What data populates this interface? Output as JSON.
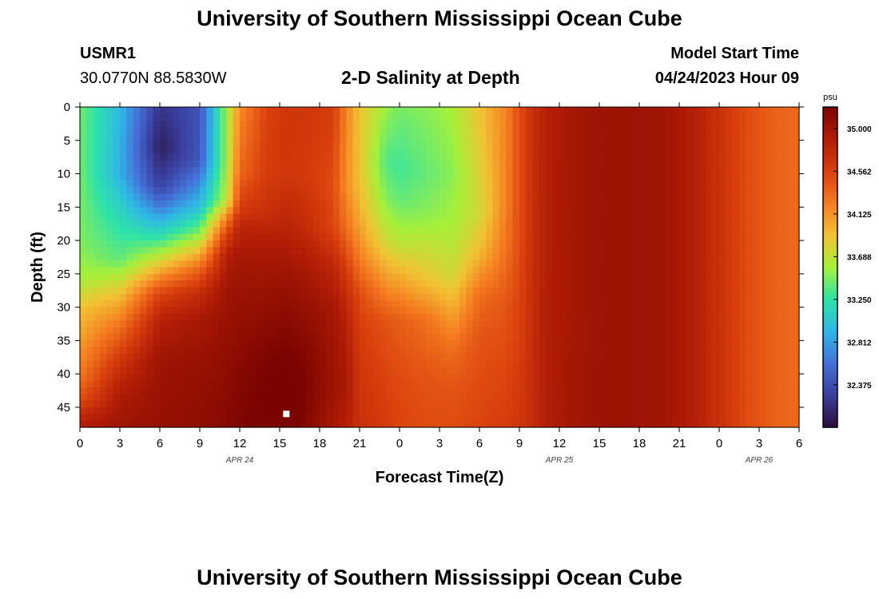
{
  "header": {
    "title": "University of Southern Mississippi Ocean Cube",
    "station_id": "USMR1",
    "location": "30.0770N  88.5830W",
    "chart_title": "2-D Salinity at Depth",
    "model_label": "Model Start Time",
    "model_time": "04/24/2023 Hour 09"
  },
  "footer": {
    "title": "University of Southern Mississippi Ocean Cube"
  },
  "chart_data": {
    "type": "heatmap",
    "title": "2-D Salinity at Depth",
    "xlabel": "Forecast Time(Z)",
    "ylabel": "Depth (ft)",
    "x_tick_labels": [
      "0",
      "3",
      "6",
      "9",
      "12",
      "15",
      "18",
      "21",
      "0",
      "3",
      "6",
      "9",
      "12",
      "15",
      "18",
      "21",
      "0",
      "3",
      "6"
    ],
    "x_date_labels": [
      {
        "label": "APR 24",
        "hour": 12
      },
      {
        "label": "APR 25",
        "hour": 36
      },
      {
        "label": "APR 26",
        "hour": 51
      }
    ],
    "xlim_hours": [
      0,
      54
    ],
    "y_tick_labels": [
      "0",
      "5",
      "10",
      "15",
      "20",
      "25",
      "30",
      "35",
      "40",
      "45"
    ],
    "ylim": [
      0,
      48
    ],
    "y_inverted": true,
    "colorbar": {
      "unit": "psu",
      "ticks": [
        "35.000",
        "34.562",
        "34.125",
        "33.688",
        "33.250",
        "32.812",
        "32.375"
      ],
      "range": [
        31.94,
        35.22
      ],
      "colormap": [
        "#2a0f3c",
        "#3a3d9c",
        "#4570d8",
        "#2fb7e6",
        "#2ee3a8",
        "#a6f03a",
        "#f2c234",
        "#f57b20",
        "#d9400d",
        "#b01c06",
        "#7a0400"
      ]
    },
    "grid": false,
    "marker": {
      "hour": 15.5,
      "depth": 46,
      "color": "#ffffff"
    },
    "salinity_profiles": [
      {
        "hour": 0,
        "values": [
          [
            0,
            33.44
          ],
          [
            10,
            33.44
          ],
          [
            20,
            33.47
          ],
          [
            26,
            33.6
          ],
          [
            30,
            33.9
          ],
          [
            36,
            34.1
          ],
          [
            41,
            34.3
          ],
          [
            44,
            34.5
          ],
          [
            46,
            34.75
          ],
          [
            48,
            34.9
          ]
        ]
      },
      {
        "hour": 3,
        "values": [
          [
            0,
            32.95
          ],
          [
            10,
            32.9
          ],
          [
            17,
            33.2
          ],
          [
            23,
            33.4
          ],
          [
            28,
            33.9
          ],
          [
            33,
            34.3
          ],
          [
            38,
            34.65
          ],
          [
            43,
            34.9
          ],
          [
            48,
            35.0
          ]
        ]
      },
      {
        "hour": 6,
        "values": [
          [
            0,
            32.2
          ],
          [
            6,
            32.05
          ],
          [
            12,
            32.3
          ],
          [
            17,
            32.9
          ],
          [
            21,
            33.45
          ],
          [
            25,
            34.1
          ],
          [
            28,
            34.55
          ],
          [
            32,
            34.85
          ],
          [
            38,
            35.0
          ],
          [
            48,
            35.05
          ]
        ]
      },
      {
        "hour": 9,
        "values": [
          [
            0,
            32.4
          ],
          [
            8,
            32.45
          ],
          [
            15,
            33.0
          ],
          [
            19,
            33.5
          ],
          [
            22,
            34.0
          ],
          [
            25,
            34.45
          ],
          [
            28,
            34.75
          ],
          [
            32,
            34.95
          ],
          [
            40,
            35.05
          ],
          [
            48,
            35.1
          ]
        ]
      },
      {
        "hour": 11,
        "values": [
          [
            0,
            33.55
          ],
          [
            8,
            33.55
          ],
          [
            14,
            33.65
          ],
          [
            17,
            34.25
          ],
          [
            19,
            34.55
          ],
          [
            22,
            34.85
          ],
          [
            28,
            35.0
          ],
          [
            40,
            35.1
          ],
          [
            48,
            35.15
          ]
        ]
      },
      {
        "hour": 12,
        "values": [
          [
            0,
            34.15
          ],
          [
            10,
            34.35
          ],
          [
            15,
            34.6
          ],
          [
            18,
            34.82
          ],
          [
            22,
            34.95
          ],
          [
            30,
            35.05
          ],
          [
            40,
            35.15
          ],
          [
            48,
            35.2
          ]
        ]
      },
      {
        "hour": 14,
        "values": [
          [
            0,
            34.55
          ],
          [
            10,
            34.6
          ],
          [
            16,
            34.72
          ],
          [
            20,
            34.88
          ],
          [
            26,
            35.0
          ],
          [
            32,
            35.1
          ],
          [
            38,
            35.2
          ],
          [
            48,
            35.25
          ]
        ]
      },
      {
        "hour": 15.5,
        "values": [
          [
            0,
            34.65
          ],
          [
            10,
            34.65
          ],
          [
            18,
            34.82
          ],
          [
            24,
            34.98
          ],
          [
            30,
            35.1
          ],
          [
            36,
            35.2
          ],
          [
            40,
            35.28
          ],
          [
            44,
            35.35
          ],
          [
            48,
            35.3
          ]
        ]
      },
      {
        "hour": 17,
        "values": [
          [
            0,
            34.65
          ],
          [
            10,
            34.62
          ],
          [
            18,
            34.75
          ],
          [
            25,
            34.95
          ],
          [
            30,
            35.05
          ],
          [
            36,
            35.15
          ],
          [
            42,
            35.2
          ],
          [
            48,
            35.15
          ]
        ]
      },
      {
        "hour": 19,
        "values": [
          [
            0,
            34.6
          ],
          [
            12,
            34.5
          ],
          [
            18,
            34.55
          ],
          [
            24,
            34.8
          ],
          [
            30,
            34.95
          ],
          [
            36,
            35.0
          ],
          [
            42,
            35.0
          ],
          [
            48,
            34.95
          ]
        ]
      },
      {
        "hour": 20,
        "values": [
          [
            0,
            34.2
          ],
          [
            12,
            34.15
          ],
          [
            18,
            34.3
          ],
          [
            24,
            34.6
          ],
          [
            30,
            34.8
          ],
          [
            36,
            34.9
          ],
          [
            42,
            34.95
          ],
          [
            48,
            34.85
          ]
        ]
      },
      {
        "hour": 21,
        "values": [
          [
            0,
            33.9
          ],
          [
            10,
            33.9
          ],
          [
            16,
            34.0
          ],
          [
            22,
            34.2
          ],
          [
            28,
            34.5
          ],
          [
            34,
            34.6
          ],
          [
            40,
            34.65
          ],
          [
            48,
            34.7
          ]
        ]
      },
      {
        "hour": 23,
        "values": [
          [
            0,
            33.55
          ],
          [
            8,
            33.35
          ],
          [
            14,
            33.5
          ],
          [
            20,
            33.75
          ],
          [
            26,
            34.1
          ],
          [
            32,
            34.45
          ],
          [
            40,
            34.55
          ],
          [
            48,
            34.6
          ]
        ]
      },
      {
        "hour": 24,
        "values": [
          [
            0,
            33.45
          ],
          [
            9,
            33.3
          ],
          [
            14,
            33.4
          ],
          [
            20,
            33.65
          ],
          [
            26,
            34.05
          ],
          [
            32,
            34.4
          ],
          [
            40,
            34.5
          ],
          [
            48,
            34.55
          ]
        ]
      },
      {
        "hour": 26,
        "values": [
          [
            0,
            33.5
          ],
          [
            10,
            33.4
          ],
          [
            16,
            33.5
          ],
          [
            22,
            33.75
          ],
          [
            26,
            33.9
          ],
          [
            32,
            34.3
          ],
          [
            40,
            34.45
          ],
          [
            48,
            34.5
          ]
        ]
      },
      {
        "hour": 28,
        "values": [
          [
            0,
            33.6
          ],
          [
            10,
            33.5
          ],
          [
            18,
            33.6
          ],
          [
            25,
            33.75
          ],
          [
            30,
            34.0
          ],
          [
            36,
            34.3
          ],
          [
            42,
            34.45
          ],
          [
            48,
            34.5
          ]
        ]
      },
      {
        "hour": 30,
        "values": [
          [
            0,
            33.9
          ],
          [
            10,
            33.8
          ],
          [
            16,
            33.75
          ],
          [
            22,
            33.95
          ],
          [
            28,
            34.3
          ],
          [
            34,
            34.45
          ],
          [
            48,
            34.55
          ]
        ]
      },
      {
        "hour": 32,
        "values": [
          [
            0,
            34.2
          ],
          [
            14,
            34.2
          ],
          [
            22,
            34.3
          ],
          [
            30,
            34.45
          ],
          [
            48,
            34.6
          ]
        ]
      },
      {
        "hour": 33,
        "values": [
          [
            0,
            34.5
          ],
          [
            20,
            34.5
          ],
          [
            48,
            34.65
          ]
        ]
      },
      {
        "hour": 34,
        "values": [
          [
            0,
            34.7
          ],
          [
            48,
            34.75
          ]
        ]
      },
      {
        "hour": 35,
        "values": [
          [
            0,
            34.85
          ],
          [
            48,
            34.88
          ]
        ]
      },
      {
        "hour": 37,
        "values": [
          [
            0,
            34.96
          ],
          [
            48,
            34.97
          ]
        ]
      },
      {
        "hour": 40,
        "values": [
          [
            0,
            35.02
          ],
          [
            48,
            35.02
          ]
        ]
      },
      {
        "hour": 44,
        "values": [
          [
            0,
            34.98
          ],
          [
            48,
            34.98
          ]
        ]
      },
      {
        "hour": 46,
        "values": [
          [
            0,
            34.88
          ],
          [
            48,
            34.88
          ]
        ]
      },
      {
        "hour": 48,
        "values": [
          [
            0,
            34.7
          ],
          [
            48,
            34.7
          ]
        ]
      },
      {
        "hour": 50,
        "values": [
          [
            0,
            34.5
          ],
          [
            48,
            34.5
          ]
        ]
      },
      {
        "hour": 52,
        "values": [
          [
            0,
            34.38
          ],
          [
            48,
            34.38
          ]
        ]
      },
      {
        "hour": 54,
        "values": [
          [
            0,
            34.33
          ],
          [
            48,
            34.33
          ]
        ]
      }
    ]
  }
}
